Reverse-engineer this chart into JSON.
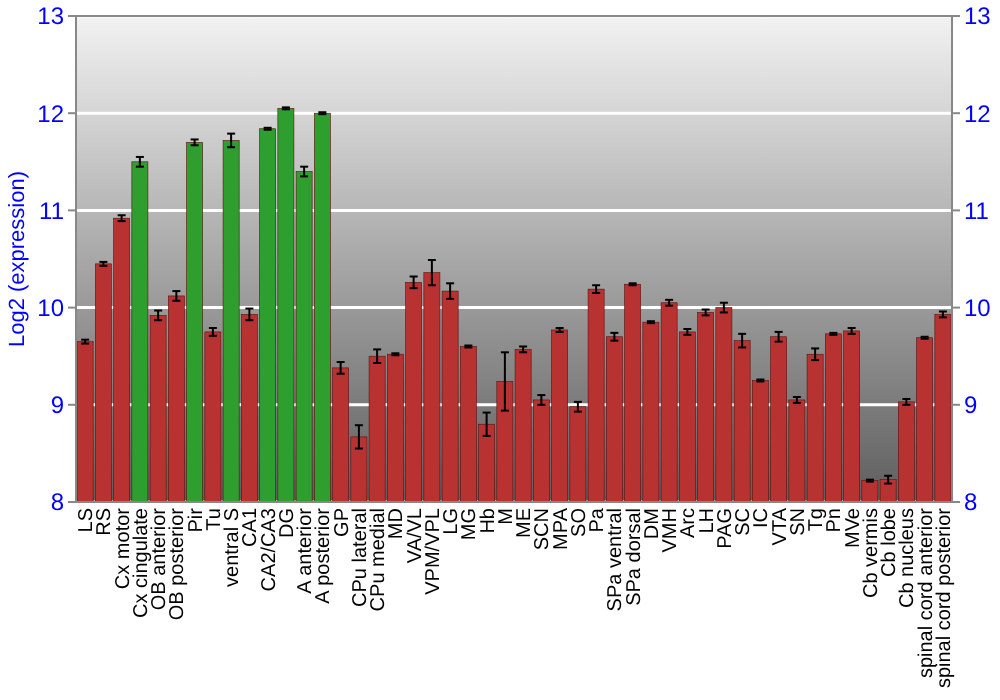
{
  "chart_data": {
    "type": "bar",
    "ylabel": "Log2 (expression)",
    "categories": [
      "LS",
      "RS",
      "Cx motor",
      "Cx cingulate",
      "OB anterior",
      "OB posterior",
      "Pir",
      "Tu",
      "ventral S",
      "CA1",
      "CA2/CA3",
      "DG",
      "A anterior",
      "A posterior",
      "GP",
      "CPu lateral",
      "CPu medial",
      "MD",
      "VA/VL",
      "VPM/VPL",
      "LG",
      "MG",
      "Hb",
      "M",
      "ME",
      "SCN",
      "MPA",
      "SO",
      "Pa",
      "SPa ventral",
      "SPa dorsal",
      "DM",
      "VMH",
      "Arc",
      "LH",
      "PAG",
      "SC",
      "IC",
      "VTA",
      "SN",
      "Tg",
      "Pn",
      "MVe",
      "Cb vermis",
      "Cb lobe",
      "Cb nucleus",
      "spinal cord anterior",
      "spinal cord posterior"
    ],
    "values": [
      9.65,
      10.45,
      10.92,
      11.5,
      9.92,
      10.12,
      11.7,
      9.75,
      11.72,
      9.93,
      11.84,
      12.05,
      11.4,
      12.0,
      9.38,
      8.67,
      9.5,
      9.52,
      10.26,
      10.36,
      10.17,
      9.6,
      8.8,
      9.24,
      9.57,
      9.05,
      9.77,
      8.98,
      10.19,
      9.7,
      10.24,
      9.85,
      10.05,
      9.75,
      9.95,
      10.0,
      9.66,
      9.25,
      9.7,
      9.05,
      9.52,
      9.73,
      9.76,
      8.22,
      8.23,
      9.03,
      9.69,
      9.93
    ],
    "errors": [
      0.02,
      0.02,
      0.03,
      0.05,
      0.05,
      0.05,
      0.03,
      0.04,
      0.07,
      0.06,
      0.01,
      0.01,
      0.05,
      0.01,
      0.06,
      0.12,
      0.07,
      0.01,
      0.06,
      0.13,
      0.08,
      0.01,
      0.12,
      0.3,
      0.03,
      0.05,
      0.02,
      0.05,
      0.04,
      0.04,
      0.01,
      0.01,
      0.03,
      0.03,
      0.03,
      0.05,
      0.07,
      0.01,
      0.05,
      0.03,
      0.06,
      0.01,
      0.03,
      0.01,
      0.04,
      0.03,
      0.01,
      0.03
    ],
    "colors": [
      "#b83232",
      "#b83232",
      "#b83232",
      "#2e9e2e",
      "#b83232",
      "#b83232",
      "#2e9e2e",
      "#b83232",
      "#2e9e2e",
      "#b83232",
      "#2e9e2e",
      "#2e9e2e",
      "#2e9e2e",
      "#2e9e2e",
      "#b83232",
      "#b83232",
      "#b83232",
      "#b83232",
      "#b83232",
      "#b83232",
      "#b83232",
      "#b83232",
      "#b83232",
      "#b83232",
      "#b83232",
      "#b83232",
      "#b83232",
      "#b83232",
      "#b83232",
      "#b83232",
      "#b83232",
      "#b83232",
      "#b83232",
      "#b83232",
      "#b83232",
      "#b83232",
      "#b83232",
      "#b83232",
      "#b83232",
      "#b83232",
      "#b83232",
      "#b83232",
      "#b83232",
      "#b83232",
      "#b83232",
      "#b83232",
      "#b83232",
      "#b83232"
    ],
    "ylim": [
      8,
      13
    ],
    "yticks": [
      8,
      9,
      10,
      11,
      12,
      13
    ],
    "y2lim": [
      8,
      13
    ],
    "y2ticks": [
      8,
      9,
      10,
      11,
      12,
      13
    ],
    "grid": "y"
  }
}
